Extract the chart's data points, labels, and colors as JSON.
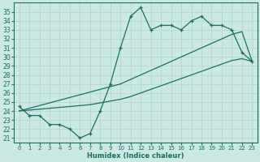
{
  "xlabel": "Humidex (Indice chaleur)",
  "bg_color": "#cce8e3",
  "grid_color": "#b8d8d3",
  "line_color": "#1a6e62",
  "x_hours": [
    0,
    1,
    2,
    3,
    4,
    5,
    6,
    7,
    8,
    9,
    10,
    11,
    12,
    13,
    14,
    15,
    16,
    17,
    18,
    19,
    20,
    21,
    22,
    23
  ],
  "y_main": [
    24.5,
    23.5,
    23.5,
    22.5,
    22.5,
    22.0,
    21.0,
    21.5,
    24.0,
    27.0,
    31.0,
    34.5,
    35.5,
    33.0,
    33.5,
    33.5,
    33.0,
    34.0,
    34.5,
    33.5,
    33.5,
    33.0,
    30.5,
    29.5
  ],
  "y_upper": [
    24.0,
    24.3,
    24.6,
    24.9,
    25.2,
    25.5,
    25.8,
    26.1,
    26.4,
    26.7,
    27.0,
    27.5,
    28.0,
    28.5,
    29.0,
    29.5,
    30.0,
    30.5,
    31.0,
    31.5,
    32.0,
    32.5,
    32.8,
    29.5
  ],
  "y_lower": [
    24.0,
    24.1,
    24.2,
    24.3,
    24.4,
    24.5,
    24.6,
    24.7,
    24.9,
    25.1,
    25.3,
    25.6,
    26.0,
    26.4,
    26.8,
    27.2,
    27.6,
    28.0,
    28.4,
    28.8,
    29.2,
    29.6,
    29.8,
    29.5
  ],
  "yticks": [
    21,
    22,
    23,
    24,
    25,
    26,
    27,
    28,
    29,
    30,
    31,
    32,
    33,
    34,
    35
  ],
  "xticks": [
    0,
    1,
    2,
    3,
    4,
    5,
    6,
    7,
    8,
    9,
    10,
    11,
    12,
    13,
    14,
    15,
    16,
    17,
    18,
    19,
    20,
    21,
    22,
    23
  ],
  "xlim": [
    -0.5,
    23.5
  ],
  "ylim": [
    20.5,
    36.0
  ]
}
